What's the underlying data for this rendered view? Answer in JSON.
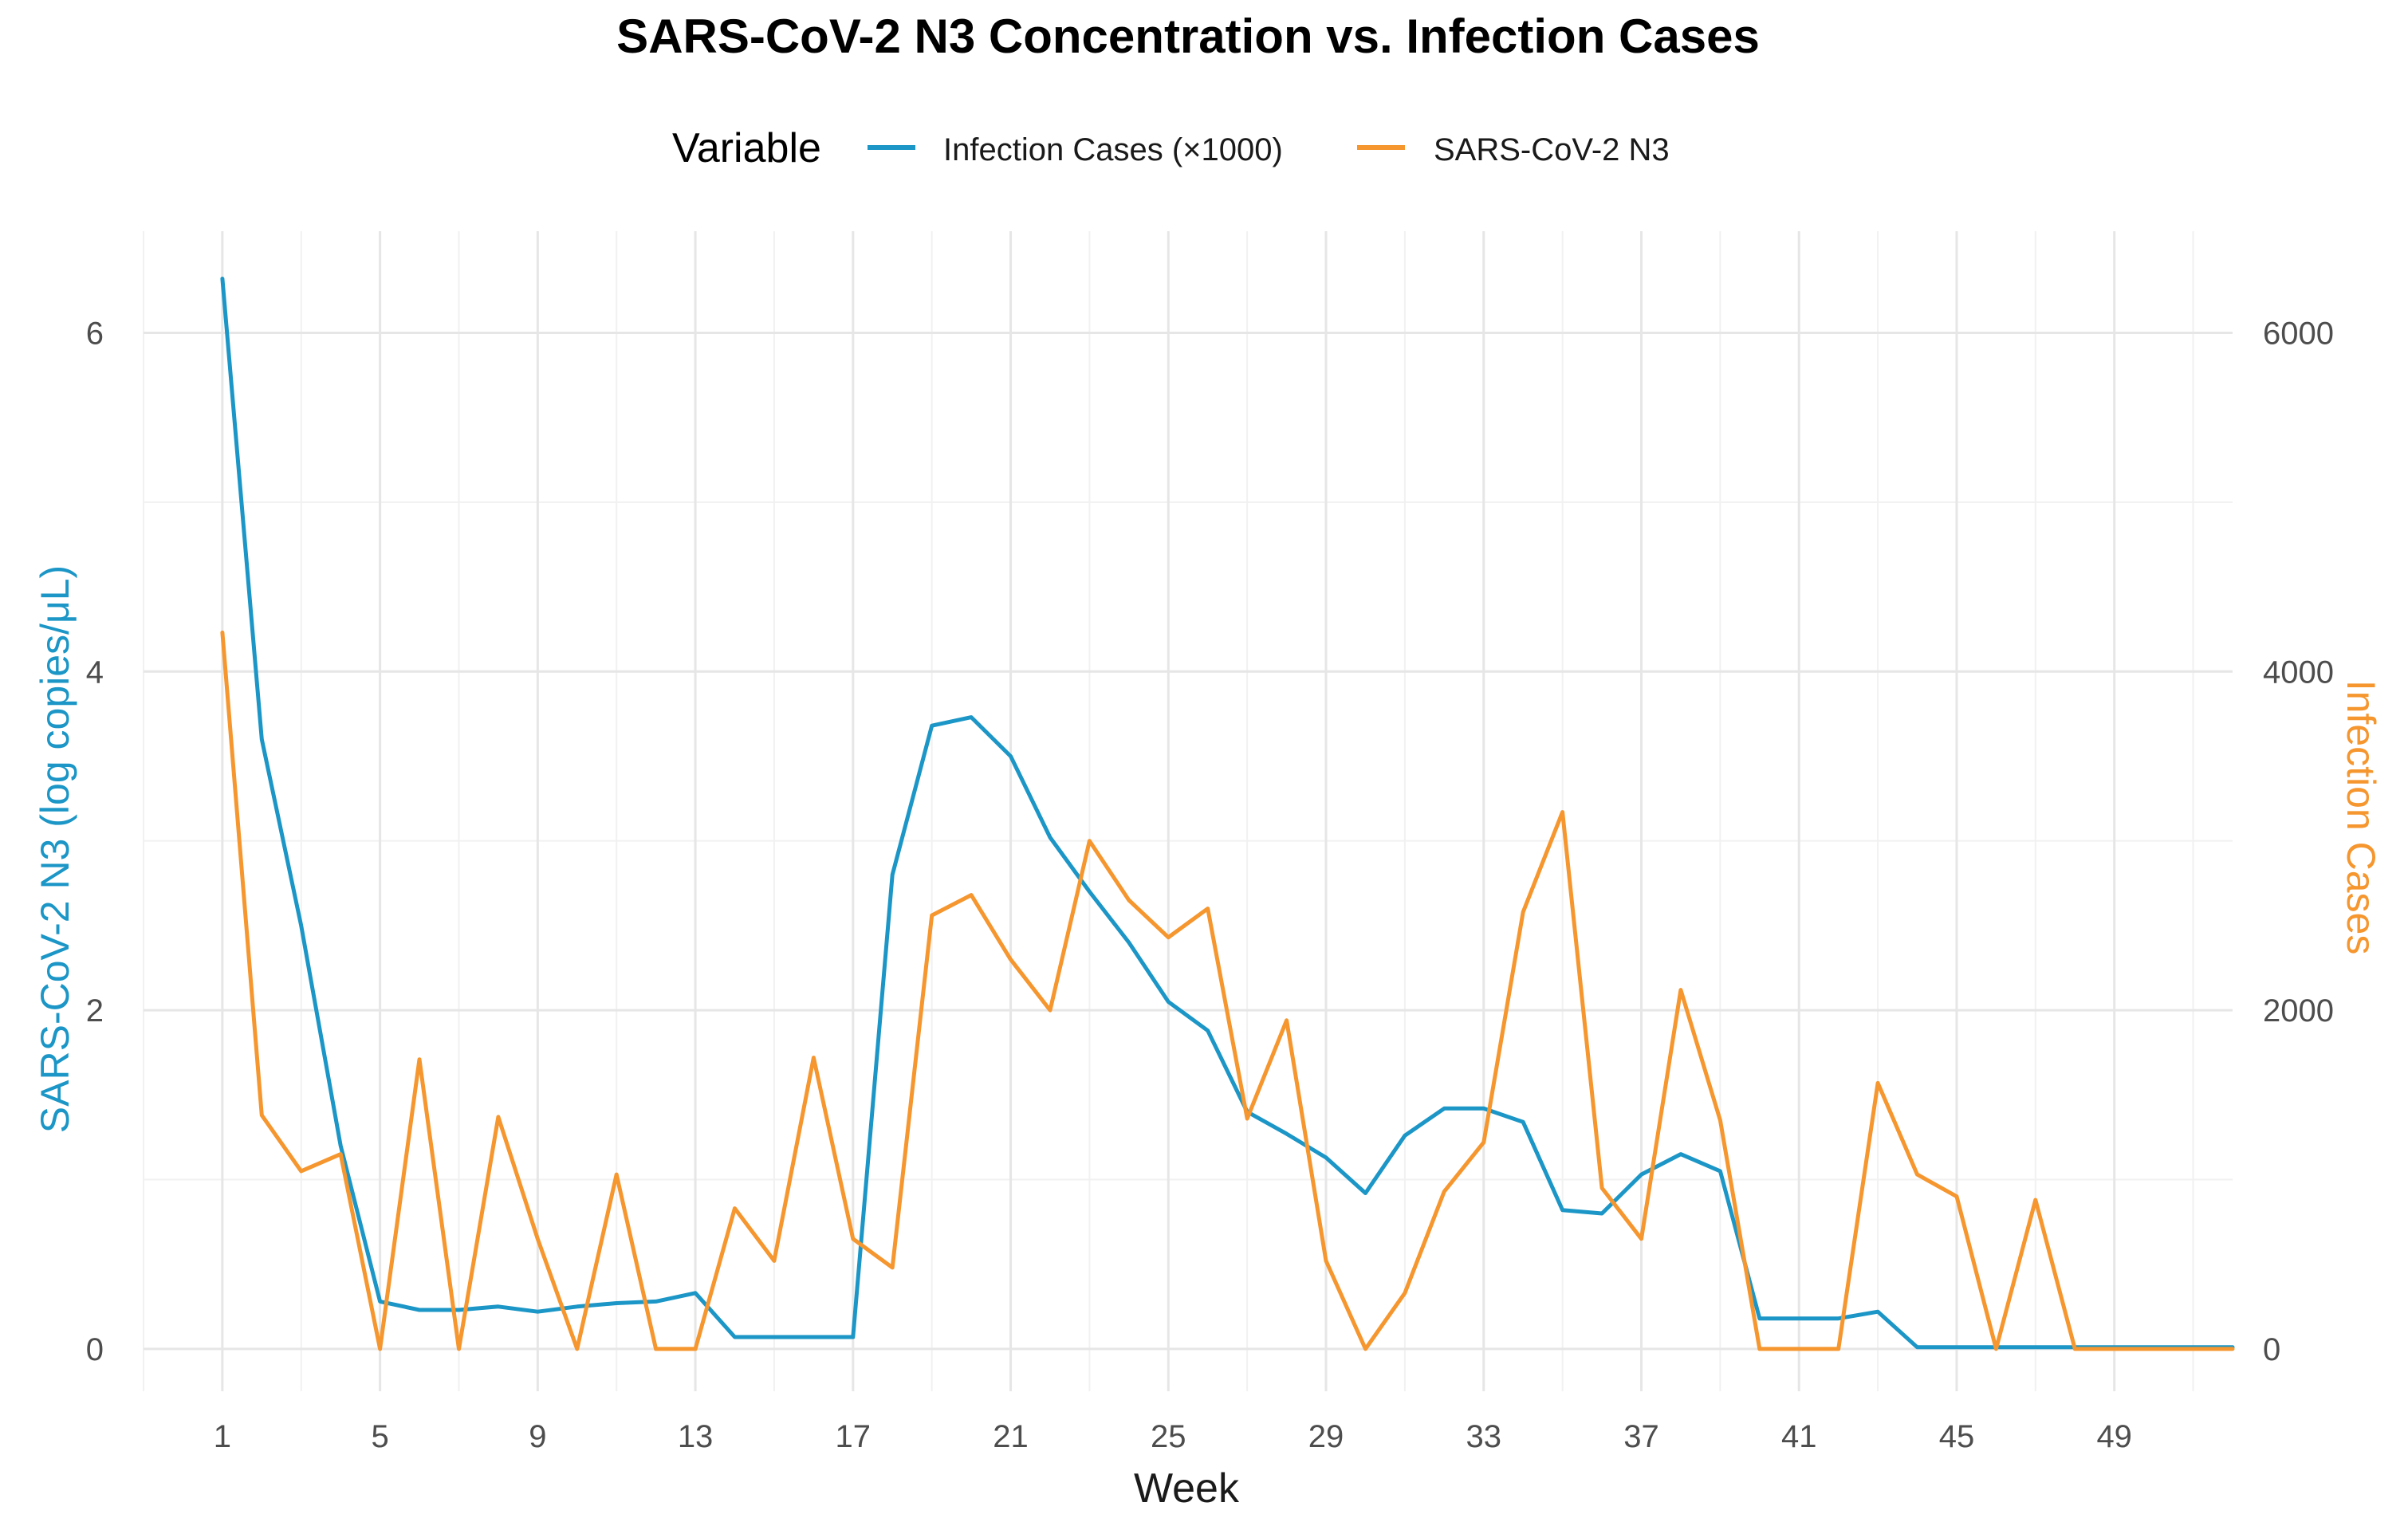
{
  "chart_data": {
    "type": "line",
    "title": "SARS-CoV-2 N3 Concentration vs. Infection Cases",
    "xlabel": "Week",
    "ylabel_left": "SARS-CoV-2 N3 (log copies/μL)",
    "ylabel_right": "Infection Cases",
    "legend": {
      "title": "Variable",
      "position": "top",
      "items": [
        {
          "label": "Infection Cases (×1000)",
          "color": "#1B96C6"
        },
        {
          "label": "SARS-CoV-2 N3",
          "color": "#F5962E"
        }
      ]
    },
    "x_ticks": [
      "1",
      "5",
      "9",
      "13",
      "17",
      "21",
      "25",
      "29",
      "33",
      "37",
      "41",
      "45",
      "49"
    ],
    "y_left_ticks": [
      "0",
      "2",
      "4",
      "6"
    ],
    "y_right_ticks": [
      "0",
      "2000",
      "4000",
      "6000"
    ],
    "xlim": [
      -1,
      52
    ],
    "ylim": [
      -0.25,
      6.6
    ],
    "grid": true,
    "series": [
      {
        "name": "Infection Cases (×1000)",
        "color": "#1B96C6",
        "x": [
          1,
          2,
          3,
          4,
          5,
          6,
          7,
          8,
          9,
          10,
          11,
          12,
          13,
          14,
          15,
          16,
          17,
          18,
          19,
          20,
          21,
          22,
          23,
          24,
          25,
          26,
          27,
          28,
          29,
          30,
          31,
          32,
          33,
          34,
          35,
          36,
          37,
          38,
          39,
          40,
          41,
          42,
          43,
          44,
          45,
          46,
          47,
          48,
          49,
          50,
          51,
          52
        ],
        "values": [
          6.32,
          3.6,
          2.5,
          1.2,
          0.28,
          0.23,
          0.23,
          0.25,
          0.22,
          0.25,
          0.27,
          0.28,
          0.33,
          0.07,
          0.07,
          0.07,
          0.07,
          2.8,
          3.68,
          3.73,
          3.5,
          3.02,
          2.7,
          2.4,
          2.05,
          1.88,
          1.4,
          1.27,
          1.13,
          0.92,
          1.26,
          1.42,
          1.42,
          1.34,
          0.82,
          0.8,
          1.03,
          1.15,
          1.05,
          0.18,
          0.18,
          0.18,
          0.22,
          0.01,
          0.01,
          0.01,
          0.01,
          0.01,
          0.01,
          0.01,
          0.01,
          0.01
        ]
      },
      {
        "name": "SARS-CoV-2 N3",
        "color": "#F5962E",
        "x": [
          1,
          2,
          3,
          4,
          5,
          6,
          7,
          8,
          9,
          10,
          11,
          12,
          13,
          14,
          15,
          16,
          17,
          18,
          19,
          20,
          21,
          22,
          23,
          24,
          25,
          26,
          27,
          28,
          29,
          30,
          31,
          32,
          33,
          34,
          35,
          36,
          37,
          38,
          39,
          40,
          41,
          42,
          43,
          44,
          45,
          46,
          47,
          48,
          49,
          50,
          51,
          52
        ],
        "values": [
          4.23,
          1.38,
          1.05,
          1.15,
          0.0,
          1.71,
          0.0,
          1.37,
          0.65,
          0.0,
          1.03,
          0.0,
          0.0,
          0.83,
          0.52,
          1.72,
          0.65,
          0.48,
          2.56,
          2.68,
          2.3,
          2.0,
          3.0,
          2.65,
          2.43,
          2.6,
          1.36,
          1.94,
          0.52,
          0.0,
          0.33,
          0.93,
          1.22,
          2.58,
          3.17,
          0.95,
          0.65,
          2.12,
          1.35,
          0.0,
          0.0,
          0.0,
          1.57,
          1.03,
          0.9,
          0.0,
          0.88,
          0.0,
          0.0,
          0.0,
          0.0,
          0.0
        ]
      }
    ]
  }
}
